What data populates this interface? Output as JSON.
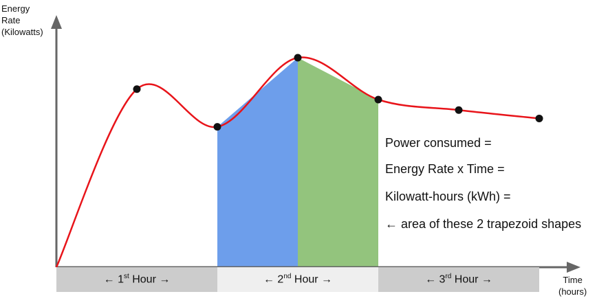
{
  "y_axis_title": [
    "Energy",
    "Rate",
    "(Kilowatts)"
  ],
  "x_axis_title": [
    "Time",
    "(hours)"
  ],
  "hour_labels": [
    {
      "prefix": "← 1",
      "sup": "st",
      "suffix": " Hour →"
    },
    {
      "prefix": "← 2",
      "sup": "nd",
      "suffix": " Hour →"
    },
    {
      "prefix": "← 3",
      "sup": "rd",
      "suffix": " Hour →"
    }
  ],
  "notes": [
    "Power consumed =",
    "Energy Rate  x  Time =",
    "Kilowatt-hours (kWh) =",
    "← area of these 2 trapezoid shapes"
  ],
  "colors": {
    "curve": "#e8141a",
    "trapezoid_1": "#6d9eeb",
    "trapezoid_2": "#93c47d",
    "hour_box_dark": "#cccccc",
    "hour_box_light": "#efefef",
    "axis": "#666666",
    "point": "#111111"
  },
  "chart_data": {
    "type": "line",
    "x_unit": "hours",
    "y_unit": "kilowatts",
    "xlim": [
      0,
      3.2
    ],
    "ylim": [
      0,
      1.3
    ],
    "points": [
      {
        "x": 0,
        "y": 0
      },
      {
        "x": 0.5,
        "y": 0.85
      },
      {
        "x": 1.0,
        "y": 0.67
      },
      {
        "x": 1.5,
        "y": 1.0
      },
      {
        "x": 2.0,
        "y": 0.8
      },
      {
        "x": 2.5,
        "y": 0.75
      },
      {
        "x": 3.0,
        "y": 0.71
      }
    ],
    "shaded_trapezoids": [
      {
        "x_start": 1.0,
        "x_end": 1.5,
        "y_start": 0.67,
        "y_end": 1.0
      },
      {
        "x_start": 1.5,
        "y_start": 1.0,
        "x_end": 2.0,
        "y_end": 0.8
      }
    ],
    "hour_intervals": [
      [
        0,
        1
      ],
      [
        1,
        2
      ],
      [
        2,
        3
      ]
    ]
  }
}
